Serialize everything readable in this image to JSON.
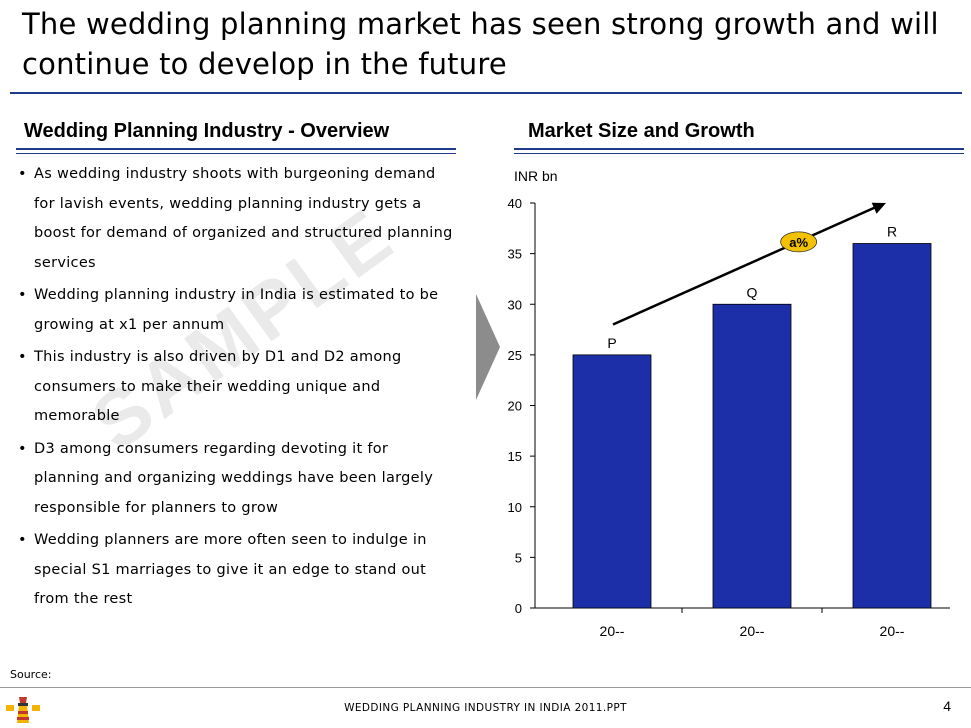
{
  "slide": {
    "title": "The wedding planning market has seen strong growth and will continue to develop in the future",
    "left_heading": "Wedding Planning Industry - Overview",
    "right_heading": "Market Size and Growth",
    "bullets": [
      "As wedding industry shoots with burgeoning demand for lavish events, wedding planning industry gets a boost for demand of organized and structured planning services",
      "Wedding planning industry in India is estimated to be growing at x1 per annum",
      "This industry is also driven by D1 and D2 among consumers to make their wedding unique and memorable",
      "D3 among consumers regarding devoting it for planning and organizing weddings have been largely responsible for planners to grow",
      "Wedding planners are more often seen to indulge in special S1 marriages to give it an edge to stand out from the rest"
    ],
    "bullet_symbol": "•",
    "watermark": "SAMPLE",
    "source_label": "Source:",
    "footer_text": "WEDDING PLANNING INDUSTRY IN INDIA 2011.PPT",
    "page_number": "4"
  },
  "colors": {
    "accent": "#1f3a8a",
    "bar_fill": "#1c2fa8",
    "growth_badge": "#f2c200",
    "transition_arrow": "#8c8c8c"
  },
  "icons": {
    "logo": "lighthouse-icon",
    "transition": "chevron-right-icon"
  },
  "chart_data": {
    "type": "bar",
    "unit_label": "INR bn",
    "categories": [
      "20--",
      "20--",
      "20--"
    ],
    "values": [
      25,
      30,
      36
    ],
    "bar_labels": [
      "P",
      "Q",
      "R"
    ],
    "ylim": [
      0,
      40
    ],
    "yticks": [
      0,
      5,
      10,
      15,
      20,
      25,
      30,
      35,
      40
    ],
    "grid": false,
    "annotation": {
      "label": "a%",
      "type": "growth-arrow"
    }
  }
}
